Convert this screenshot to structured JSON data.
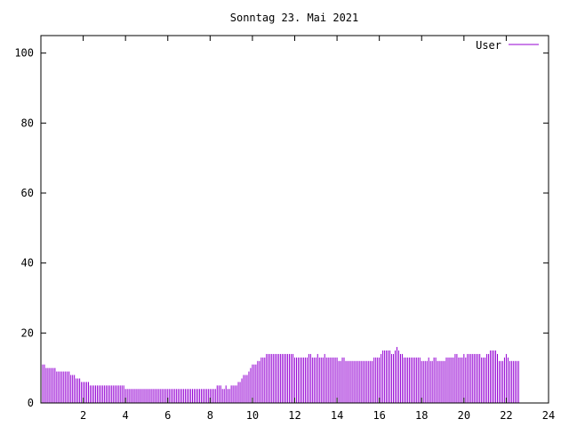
{
  "chart_data": {
    "type": "bar",
    "title": "Sonntag 23. Mai 2021",
    "xlabel": "",
    "ylabel": "",
    "xlim": [
      0,
      24
    ],
    "ylim": [
      0,
      105
    ],
    "x_ticks": [
      "2",
      "4",
      "6",
      "8",
      "10",
      "12",
      "14",
      "16",
      "18",
      "20",
      "22",
      "24"
    ],
    "x_tick_values": [
      2,
      4,
      6,
      8,
      10,
      12,
      14,
      16,
      18,
      20,
      22,
      24
    ],
    "y_ticks": [
      "0",
      "20",
      "40",
      "60",
      "80",
      "100"
    ],
    "y_tick_values": [
      0,
      20,
      40,
      60,
      80,
      100
    ],
    "grid": false,
    "legend_position": "top-right",
    "series": [
      {
        "name": "User",
        "color": "#9400d3",
        "x_step_minutes": 5,
        "values": [
          12,
          11,
          11,
          10,
          10,
          10,
          10,
          10,
          10,
          9,
          9,
          9,
          9,
          9,
          9,
          9,
          9,
          8,
          8,
          8,
          7,
          7,
          7,
          6,
          6,
          6,
          6,
          6,
          5,
          5,
          5,
          5,
          5,
          5,
          5,
          5,
          5,
          5,
          5,
          5,
          5,
          5,
          5,
          5,
          5,
          5,
          5,
          5,
          4,
          4,
          4,
          4,
          4,
          4,
          4,
          4,
          4,
          4,
          4,
          4,
          4,
          4,
          4,
          4,
          4,
          4,
          4,
          4,
          4,
          4,
          4,
          4,
          4,
          4,
          4,
          4,
          4,
          4,
          4,
          4,
          4,
          4,
          4,
          4,
          4,
          4,
          4,
          4,
          4,
          4,
          4,
          4,
          4,
          4,
          4,
          4,
          4,
          4,
          4,
          4,
          5,
          5,
          5,
          4,
          4,
          5,
          4,
          4,
          5,
          5,
          5,
          5,
          6,
          6,
          7,
          8,
          8,
          8,
          9,
          10,
          11,
          11,
          11,
          12,
          12,
          13,
          13,
          13,
          14,
          14,
          14,
          14,
          14,
          14,
          14,
          14,
          14,
          14,
          14,
          14,
          14,
          14,
          14,
          14,
          13,
          13,
          13,
          13,
          13,
          13,
          13,
          13,
          14,
          14,
          13,
          13,
          13,
          14,
          13,
          13,
          13,
          14,
          13,
          13,
          13,
          13,
          13,
          13,
          13,
          12,
          12,
          13,
          13,
          12,
          12,
          12,
          12,
          12,
          12,
          12,
          12,
          12,
          12,
          12,
          12,
          12,
          12,
          12,
          12,
          13,
          13,
          13,
          13,
          14,
          15,
          15,
          15,
          15,
          15,
          14,
          14,
          15,
          16,
          15,
          14,
          14,
          13,
          13,
          13,
          13,
          13,
          13,
          13,
          13,
          13,
          13,
          12,
          12,
          12,
          12,
          13,
          12,
          12,
          13,
          13,
          12,
          12,
          12,
          12,
          12,
          13,
          13,
          13,
          13,
          13,
          14,
          14,
          13,
          13,
          13,
          14,
          13,
          14,
          14,
          14,
          14,
          14,
          14,
          14,
          14,
          13,
          13,
          13,
          14,
          14,
          15,
          15,
          15,
          15,
          14,
          12,
          12,
          12,
          13,
          14,
          13,
          12,
          12,
          12,
          12,
          12,
          12
        ]
      }
    ]
  }
}
